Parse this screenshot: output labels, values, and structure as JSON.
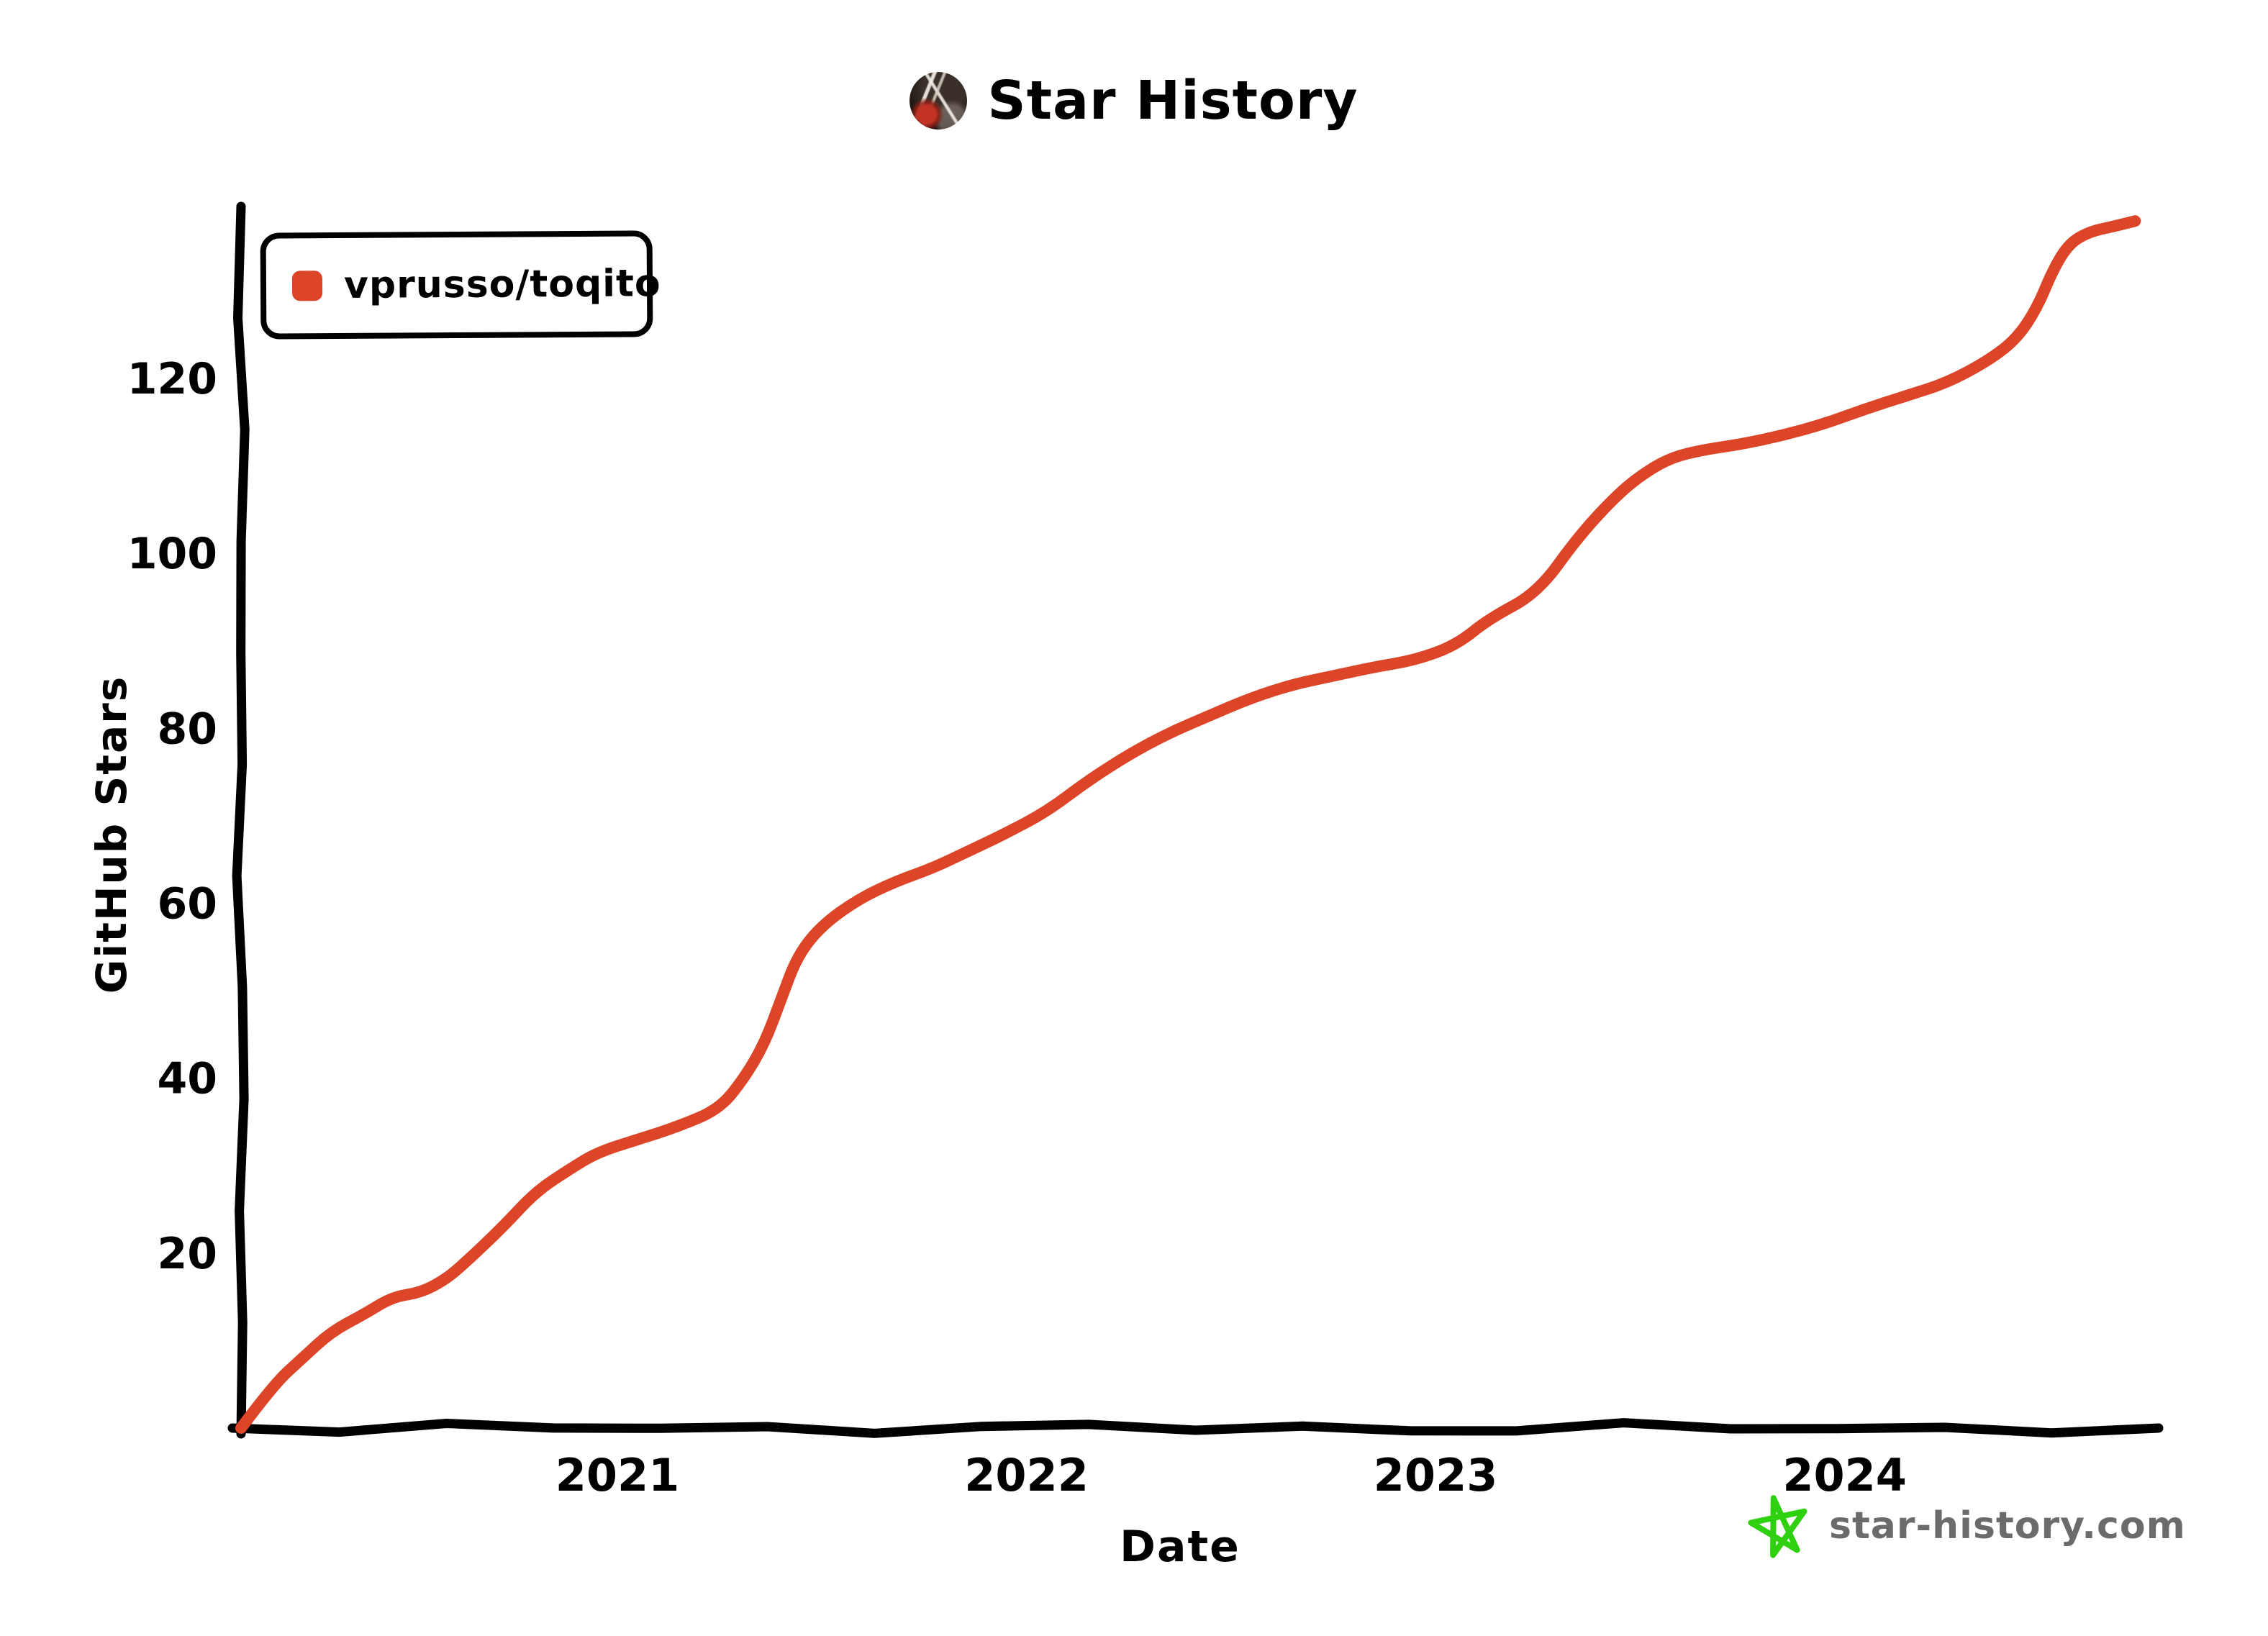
{
  "header": {
    "title": "Star History"
  },
  "axes": {
    "y_label": "GitHub Stars",
    "x_label": "Date"
  },
  "watermark": {
    "text": "star-history.com",
    "star_color": "#2ed00f",
    "text_color": "#6b6b6b"
  },
  "colors": {
    "series_red": "#dd4528",
    "axis_black": "#000000",
    "background": "#ffffff"
  },
  "chart_data": {
    "type": "line",
    "title": "Star History",
    "xlabel": "Date",
    "ylabel": "GitHub Stars",
    "xlim": [
      2020.08,
      2024.75
    ],
    "ylim": [
      0,
      139
    ],
    "x_ticks": [
      2021,
      2022,
      2023,
      2024
    ],
    "y_ticks": [
      20,
      40,
      60,
      80,
      100,
      120
    ],
    "grid": false,
    "legend_position": "top-left",
    "series": [
      {
        "name": "vprusso/toqito",
        "color": "#dd4528",
        "points": [
          [
            2020.08,
            0
          ],
          [
            2020.16,
            5
          ],
          [
            2020.23,
            8
          ],
          [
            2020.3,
            11
          ],
          [
            2020.38,
            13
          ],
          [
            2020.45,
            15
          ],
          [
            2020.52,
            15.5
          ],
          [
            2020.58,
            17
          ],
          [
            2020.63,
            19
          ],
          [
            2020.72,
            23
          ],
          [
            2020.8,
            27
          ],
          [
            2020.88,
            29.5
          ],
          [
            2020.95,
            31.5
          ],
          [
            2021.05,
            33
          ],
          [
            2021.15,
            34.5
          ],
          [
            2021.25,
            36.5
          ],
          [
            2021.31,
            40
          ],
          [
            2021.36,
            44
          ],
          [
            2021.4,
            49
          ],
          [
            2021.44,
            54
          ],
          [
            2021.5,
            57.5
          ],
          [
            2021.59,
            60.5
          ],
          [
            2021.68,
            62.5
          ],
          [
            2021.77,
            64
          ],
          [
            2021.86,
            66
          ],
          [
            2021.95,
            68
          ],
          [
            2022.05,
            70.5
          ],
          [
            2022.15,
            74
          ],
          [
            2022.25,
            77
          ],
          [
            2022.35,
            79.5
          ],
          [
            2022.45,
            81.5
          ],
          [
            2022.55,
            83.5
          ],
          [
            2022.65,
            85
          ],
          [
            2022.75,
            86
          ],
          [
            2022.85,
            87
          ],
          [
            2022.95,
            87.8
          ],
          [
            2023.05,
            89.5
          ],
          [
            2023.13,
            92.5
          ],
          [
            2023.25,
            95.5
          ],
          [
            2023.35,
            102
          ],
          [
            2023.45,
            107
          ],
          [
            2023.52,
            109.5
          ],
          [
            2023.58,
            111
          ],
          [
            2023.65,
            111.8
          ],
          [
            2023.75,
            112.5
          ],
          [
            2023.85,
            113.5
          ],
          [
            2023.95,
            114.8
          ],
          [
            2024.05,
            116.5
          ],
          [
            2024.15,
            118
          ],
          [
            2024.25,
            119.5
          ],
          [
            2024.35,
            122
          ],
          [
            2024.42,
            124.5
          ],
          [
            2024.47,
            128
          ],
          [
            2024.51,
            132.5
          ],
          [
            2024.55,
            135.5
          ],
          [
            2024.6,
            136.8
          ],
          [
            2024.66,
            137.4
          ],
          [
            2024.71,
            138
          ]
        ]
      }
    ]
  }
}
